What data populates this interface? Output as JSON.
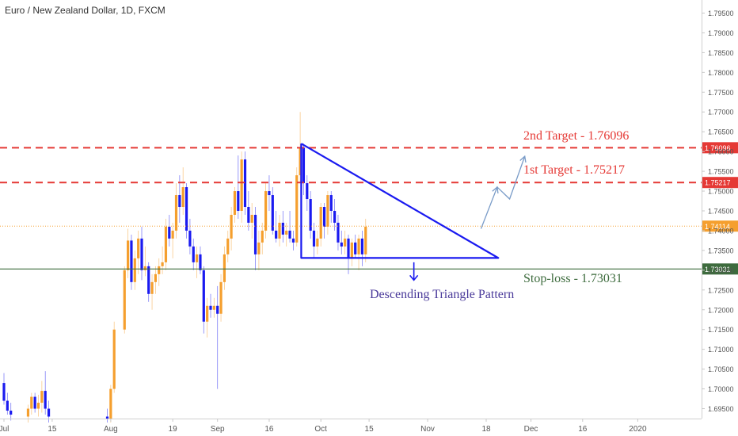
{
  "header": {
    "symbol_title": "Euro / New Zealand Dollar, 1D, FXCM"
  },
  "chart_data": {
    "type": "candlestick",
    "y_scale": {
      "min": 1.6925,
      "max": 1.7975
    },
    "y_ticks": [
      "1.79500",
      "1.79000",
      "1.78500",
      "1.78000",
      "1.77500",
      "1.77000",
      "1.76500",
      "1.76000",
      "1.75500",
      "1.75000",
      "1.74500",
      "1.74000",
      "1.73500",
      "1.73000",
      "1.72500",
      "1.72000",
      "1.71500",
      "1.71000",
      "1.70500",
      "1.70000",
      "1.69500"
    ],
    "x_labels": [
      {
        "label": "Jul",
        "day": 0
      },
      {
        "label": "15",
        "day": 14
      },
      {
        "label": "Aug",
        "day": 31
      },
      {
        "label": "19",
        "day": 49
      },
      {
        "label": "Sep",
        "day": 62
      },
      {
        "label": "16",
        "day": 77
      },
      {
        "label": "Oct",
        "day": 92
      },
      {
        "label": "15",
        "day": 106
      },
      {
        "label": "Nov",
        "day": 123
      },
      {
        "label": "18",
        "day": 140
      },
      {
        "label": "Dec",
        "day": 153
      },
      {
        "label": "16",
        "day": 168
      },
      {
        "label": "2020",
        "day": 184
      }
    ],
    "candles": [
      {
        "d": 0,
        "o": 1.7015,
        "h": 1.704,
        "l": 1.696,
        "c": 1.697
      },
      {
        "d": 1,
        "o": 1.697,
        "h": 1.699,
        "l": 1.6935,
        "c": 1.6945
      },
      {
        "d": 2,
        "o": 1.6945,
        "h": 1.6965,
        "l": 1.692,
        "c": 1.6935
      },
      {
        "d": 7,
        "o": 1.693,
        "h": 1.696,
        "l": 1.6915,
        "c": 1.695
      },
      {
        "d": 8,
        "o": 1.695,
        "h": 1.699,
        "l": 1.6935,
        "c": 1.698
      },
      {
        "d": 9,
        "o": 1.698,
        "h": 1.699,
        "l": 1.694,
        "c": 1.695
      },
      {
        "d": 10,
        "o": 1.695,
        "h": 1.6985,
        "l": 1.693,
        "c": 1.6965
      },
      {
        "d": 11,
        "o": 1.6965,
        "h": 1.702,
        "l": 1.694,
        "c": 1.6995
      },
      {
        "d": 12,
        "o": 1.6995,
        "h": 1.7045,
        "l": 1.6935,
        "c": 1.695
      },
      {
        "d": 13,
        "o": 1.695,
        "h": 1.697,
        "l": 1.6915,
        "c": 1.693
      },
      {
        "d": 30,
        "o": 1.693,
        "h": 1.695,
        "l": 1.6915,
        "c": 1.6925
      },
      {
        "d": 31,
        "o": 1.6925,
        "h": 1.701,
        "l": 1.6915,
        "c": 1.7
      },
      {
        "d": 32,
        "o": 1.7,
        "h": 1.717,
        "l": 1.699,
        "c": 1.715
      },
      {
        "d": 35,
        "o": 1.715,
        "h": 1.731,
        "l": 1.714,
        "c": 1.73
      },
      {
        "d": 36,
        "o": 1.73,
        "h": 1.7405,
        "l": 1.728,
        "c": 1.7375
      },
      {
        "d": 37,
        "o": 1.7375,
        "h": 1.739,
        "l": 1.725,
        "c": 1.727
      },
      {
        "d": 38,
        "o": 1.727,
        "h": 1.735,
        "l": 1.725,
        "c": 1.733
      },
      {
        "d": 39,
        "o": 1.733,
        "h": 1.74,
        "l": 1.729,
        "c": 1.738
      },
      {
        "d": 40,
        "o": 1.738,
        "h": 1.741,
        "l": 1.7275,
        "c": 1.73
      },
      {
        "d": 41,
        "o": 1.73,
        "h": 1.736,
        "l": 1.7285,
        "c": 1.731
      },
      {
        "d": 42,
        "o": 1.731,
        "h": 1.732,
        "l": 1.722,
        "c": 1.724
      },
      {
        "d": 43,
        "o": 1.724,
        "h": 1.729,
        "l": 1.72,
        "c": 1.727
      },
      {
        "d": 44,
        "o": 1.727,
        "h": 1.731,
        "l": 1.724,
        "c": 1.729
      },
      {
        "d": 45,
        "o": 1.729,
        "h": 1.733,
        "l": 1.726,
        "c": 1.731
      },
      {
        "d": 46,
        "o": 1.731,
        "h": 1.736,
        "l": 1.729,
        "c": 1.732
      },
      {
        "d": 47,
        "o": 1.732,
        "h": 1.743,
        "l": 1.73,
        "c": 1.741
      },
      {
        "d": 48,
        "o": 1.741,
        "h": 1.744,
        "l": 1.736,
        "c": 1.738
      },
      {
        "d": 49,
        "o": 1.738,
        "h": 1.742,
        "l": 1.733,
        "c": 1.74
      },
      {
        "d": 50,
        "o": 1.74,
        "h": 1.752,
        "l": 1.738,
        "c": 1.749
      },
      {
        "d": 51,
        "o": 1.749,
        "h": 1.754,
        "l": 1.742,
        "c": 1.746
      },
      {
        "d": 52,
        "o": 1.746,
        "h": 1.756,
        "l": 1.744,
        "c": 1.751
      },
      {
        "d": 53,
        "o": 1.751,
        "h": 1.752,
        "l": 1.738,
        "c": 1.74
      },
      {
        "d": 54,
        "o": 1.74,
        "h": 1.743,
        "l": 1.734,
        "c": 1.736
      },
      {
        "d": 55,
        "o": 1.736,
        "h": 1.738,
        "l": 1.73,
        "c": 1.732
      },
      {
        "d": 56,
        "o": 1.732,
        "h": 1.736,
        "l": 1.728,
        "c": 1.734
      },
      {
        "d": 57,
        "o": 1.734,
        "h": 1.736,
        "l": 1.729,
        "c": 1.73
      },
      {
        "d": 58,
        "o": 1.73,
        "h": 1.731,
        "l": 1.714,
        "c": 1.717
      },
      {
        "d": 59,
        "o": 1.717,
        "h": 1.723,
        "l": 1.713,
        "c": 1.721
      },
      {
        "d": 60,
        "o": 1.721,
        "h": 1.724,
        "l": 1.718,
        "c": 1.72
      },
      {
        "d": 61,
        "o": 1.72,
        "h": 1.723,
        "l": 1.718,
        "c": 1.721
      },
      {
        "d": 62,
        "o": 1.721,
        "h": 1.726,
        "l": 1.7,
        "c": 1.719
      },
      {
        "d": 63,
        "o": 1.719,
        "h": 1.729,
        "l": 1.717,
        "c": 1.727
      },
      {
        "d": 64,
        "o": 1.727,
        "h": 1.736,
        "l": 1.725,
        "c": 1.734
      },
      {
        "d": 65,
        "o": 1.734,
        "h": 1.74,
        "l": 1.732,
        "c": 1.738
      },
      {
        "d": 66,
        "o": 1.738,
        "h": 1.746,
        "l": 1.735,
        "c": 1.744
      },
      {
        "d": 67,
        "o": 1.744,
        "h": 1.751,
        "l": 1.742,
        "c": 1.75
      },
      {
        "d": 68,
        "o": 1.75,
        "h": 1.759,
        "l": 1.743,
        "c": 1.745
      },
      {
        "d": 69,
        "o": 1.745,
        "h": 1.76,
        "l": 1.742,
        "c": 1.758
      },
      {
        "d": 70,
        "o": 1.758,
        "h": 1.76,
        "l": 1.744,
        "c": 1.746
      },
      {
        "d": 71,
        "o": 1.746,
        "h": 1.75,
        "l": 1.74,
        "c": 1.742
      },
      {
        "d": 72,
        "o": 1.742,
        "h": 1.747,
        "l": 1.738,
        "c": 1.744
      },
      {
        "d": 73,
        "o": 1.744,
        "h": 1.746,
        "l": 1.73,
        "c": 1.734
      },
      {
        "d": 74,
        "o": 1.734,
        "h": 1.74,
        "l": 1.73,
        "c": 1.737
      },
      {
        "d": 75,
        "o": 1.737,
        "h": 1.742,
        "l": 1.734,
        "c": 1.74
      },
      {
        "d": 76,
        "o": 1.74,
        "h": 1.752,
        "l": 1.738,
        "c": 1.75
      },
      {
        "d": 77,
        "o": 1.75,
        "h": 1.754,
        "l": 1.745,
        "c": 1.749
      },
      {
        "d": 78,
        "o": 1.749,
        "h": 1.751,
        "l": 1.739,
        "c": 1.74
      },
      {
        "d": 79,
        "o": 1.74,
        "h": 1.745,
        "l": 1.737,
        "c": 1.738
      },
      {
        "d": 80,
        "o": 1.738,
        "h": 1.744,
        "l": 1.736,
        "c": 1.742
      },
      {
        "d": 81,
        "o": 1.742,
        "h": 1.745,
        "l": 1.737,
        "c": 1.739
      },
      {
        "d": 82,
        "o": 1.739,
        "h": 1.742,
        "l": 1.736,
        "c": 1.74
      },
      {
        "d": 83,
        "o": 1.74,
        "h": 1.745,
        "l": 1.737,
        "c": 1.738
      },
      {
        "d": 84,
        "o": 1.738,
        "h": 1.74,
        "l": 1.735,
        "c": 1.737
      },
      {
        "d": 85,
        "o": 1.737,
        "h": 1.756,
        "l": 1.736,
        "c": 1.754
      },
      {
        "d": 86,
        "o": 1.754,
        "h": 1.77,
        "l": 1.752,
        "c": 1.761
      },
      {
        "d": 87,
        "o": 1.761,
        "h": 1.762,
        "l": 1.749,
        "c": 1.752
      },
      {
        "d": 88,
        "o": 1.752,
        "h": 1.754,
        "l": 1.745,
        "c": 1.748
      },
      {
        "d": 89,
        "o": 1.748,
        "h": 1.75,
        "l": 1.738,
        "c": 1.74
      },
      {
        "d": 90,
        "o": 1.74,
        "h": 1.742,
        "l": 1.733,
        "c": 1.736
      },
      {
        "d": 91,
        "o": 1.736,
        "h": 1.74,
        "l": 1.734,
        "c": 1.738
      },
      {
        "d": 92,
        "o": 1.738,
        "h": 1.747,
        "l": 1.736,
        "c": 1.746
      },
      {
        "d": 93,
        "o": 1.746,
        "h": 1.747,
        "l": 1.738,
        "c": 1.741
      },
      {
        "d": 94,
        "o": 1.741,
        "h": 1.75,
        "l": 1.739,
        "c": 1.749
      },
      {
        "d": 95,
        "o": 1.749,
        "h": 1.75,
        "l": 1.742,
        "c": 1.745
      },
      {
        "d": 96,
        "o": 1.745,
        "h": 1.748,
        "l": 1.74,
        "c": 1.742
      },
      {
        "d": 97,
        "o": 1.742,
        "h": 1.744,
        "l": 1.735,
        "c": 1.737
      },
      {
        "d": 98,
        "o": 1.737,
        "h": 1.74,
        "l": 1.734,
        "c": 1.736
      },
      {
        "d": 99,
        "o": 1.736,
        "h": 1.74,
        "l": 1.734,
        "c": 1.738
      },
      {
        "d": 100,
        "o": 1.738,
        "h": 1.739,
        "l": 1.729,
        "c": 1.733
      },
      {
        "d": 101,
        "o": 1.733,
        "h": 1.738,
        "l": 1.731,
        "c": 1.737
      },
      {
        "d": 102,
        "o": 1.737,
        "h": 1.739,
        "l": 1.733,
        "c": 1.734
      },
      {
        "d": 103,
        "o": 1.734,
        "h": 1.739,
        "l": 1.73,
        "c": 1.738
      },
      {
        "d": 104,
        "o": 1.738,
        "h": 1.74,
        "l": 1.731,
        "c": 1.734
      },
      {
        "d": 105,
        "o": 1.734,
        "h": 1.743,
        "l": 1.732,
        "c": 1.741
      }
    ],
    "price_levels": [
      {
        "label": "1.76096",
        "value": 1.76096,
        "style": "dashed",
        "color": "#e53935",
        "text": "2nd Target - 1.76096"
      },
      {
        "label": "1.75217",
        "value": 1.75217,
        "style": "dashed",
        "color": "#e53935",
        "text": "1st Target - 1.75217"
      },
      {
        "label": "1.74114",
        "value": 1.74114,
        "style": "dotted",
        "color": "#f59f2e",
        "text": ""
      },
      {
        "label": "1.73031",
        "value": 1.73031,
        "style": "solid",
        "color": "#3d6b3d",
        "text": "Stop-loss - 1.73031"
      }
    ],
    "pattern_label": "Descending Triangle Pattern"
  },
  "colors": {
    "up": "#f59f2e",
    "down": "#1a1af0",
    "target": "#e53935",
    "stop": "#3d6b3d",
    "current": "#f59f2e",
    "pattern": "#1a1af0",
    "arrow": "#7a9cc8",
    "pattern_text": "#4a3a9a"
  }
}
